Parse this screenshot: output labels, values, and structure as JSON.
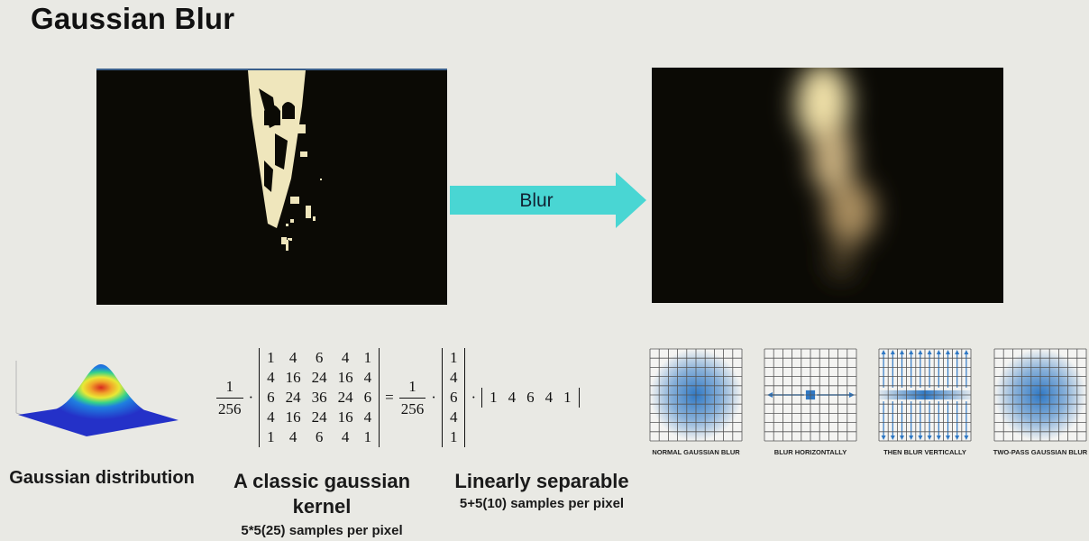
{
  "title": "Gaussian Blur",
  "arrow_label": "Blur",
  "gaussian_caption": "Gaussian distribution",
  "kernel": {
    "caption_line1": "A classic gaussian",
    "caption_line2": "kernel",
    "samples": "5*5(25) samples per pixel",
    "scale_num": "1",
    "scale_den": "256",
    "dot": "·",
    "equals": "=",
    "matrix": [
      [
        "1",
        "4",
        "6",
        "4",
        "1"
      ],
      [
        "4",
        "16",
        "24",
        "16",
        "4"
      ],
      [
        "6",
        "24",
        "36",
        "24",
        "6"
      ],
      [
        "4",
        "16",
        "24",
        "16",
        "4"
      ],
      [
        "1",
        "4",
        "6",
        "4",
        "1"
      ]
    ]
  },
  "separable": {
    "caption": "Linearly separable",
    "samples": "5+5(10) samples per pixel",
    "scale_num": "1",
    "scale_den": "256",
    "column": [
      "1",
      "4",
      "6",
      "4",
      "1"
    ],
    "row": [
      "1",
      "4",
      "6",
      "4",
      "1"
    ]
  },
  "grids": [
    {
      "label": "NORMAL GAUSSIAN BLUR"
    },
    {
      "label": "BLUR HORIZONTALLY"
    },
    {
      "label": "THEN BLUR VERTICALLY"
    },
    {
      "label": "TWO-PASS GAUSSIAN BLUR"
    }
  ],
  "colors": {
    "arrow": "#49d6d3",
    "image_bg": "#0b0a05",
    "highlight": "#efe6bc",
    "grid_blue": "#2f78c4"
  }
}
